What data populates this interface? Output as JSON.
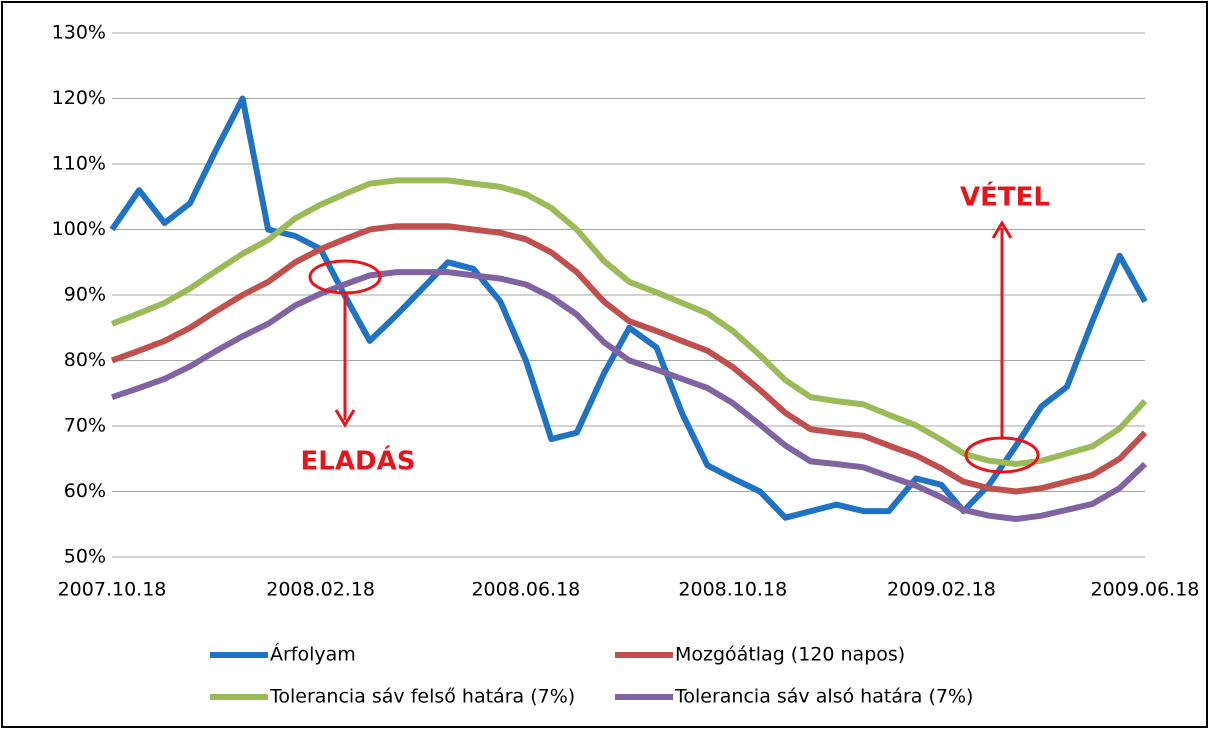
{
  "chart_data": {
    "type": "line",
    "x": [
      "2007.10.18",
      "2007.11.03",
      "2007.11.18",
      "2007.12.03",
      "2007.12.18",
      "2008.01.03",
      "2008.01.18",
      "2008.02.03",
      "2008.02.18",
      "2008.03.03",
      "2008.03.18",
      "2008.04.03",
      "2008.04.18",
      "2008.05.03",
      "2008.05.18",
      "2008.06.03",
      "2008.06.18",
      "2008.07.03",
      "2008.07.18",
      "2008.08.03",
      "2008.08.18",
      "2008.09.03",
      "2008.09.18",
      "2008.10.03",
      "2008.10.18",
      "2008.11.03",
      "2008.11.18",
      "2008.12.03",
      "2008.12.18",
      "2009.01.03",
      "2009.01.18",
      "2009.02.03",
      "2009.02.18",
      "2009.03.03",
      "2009.03.18",
      "2009.04.03",
      "2009.04.18",
      "2009.05.03",
      "2009.05.18",
      "2009.06.03",
      "2009.06.18"
    ],
    "series": [
      {
        "name": "Árfolyam",
        "color": "#1f73c2",
        "values": [
          100,
          106,
          101,
          104,
          112,
          120,
          100,
          99,
          97,
          90,
          83,
          87,
          91,
          95,
          94,
          89,
          80,
          68,
          69,
          78,
          85,
          82,
          72,
          64,
          62,
          60,
          56,
          57,
          58,
          57,
          57,
          62,
          61,
          57,
          61,
          67,
          73,
          76,
          86,
          96,
          89
        ]
      },
      {
        "name": "Mozgóátlag (120 napos)",
        "color": "#c0504d",
        "values": [
          80,
          81.5,
          83,
          85,
          87.5,
          90,
          92,
          95,
          97,
          98.5,
          100,
          100.5,
          100.5,
          100.5,
          100,
          99.5,
          98.5,
          96.5,
          93.5,
          89,
          86,
          84.5,
          83,
          81.5,
          79,
          75.5,
          72,
          69.5,
          69,
          68.5,
          67,
          65.5,
          63.5,
          61.5,
          60.5,
          60,
          60.5,
          61.5,
          62.5,
          65,
          69
        ]
      },
      {
        "name": "Tolerancia sáv felső határa (7%)",
        "color": "#9bbb59",
        "values": [
          85.6,
          87.2,
          88.8,
          91,
          93.6,
          96.3,
          98.4,
          101.7,
          103.8,
          105.4,
          107,
          107.5,
          107.5,
          107.5,
          107,
          106.5,
          105.4,
          103.3,
          100,
          95.2,
          92,
          90.4,
          88.8,
          87.2,
          84.5,
          80.8,
          77,
          74.4,
          73.8,
          73.3,
          71.7,
          70.1,
          67.9,
          65.8,
          64.7,
          64.2,
          64.7,
          65.8,
          66.9,
          69.6,
          73.8
        ]
      },
      {
        "name": "Tolerancia sáv alsó határa (7%)",
        "color": "#8064a2",
        "values": [
          74.4,
          75.8,
          77.2,
          79.1,
          81.4,
          83.7,
          85.6,
          88.4,
          90.2,
          91.6,
          93,
          93.5,
          93.5,
          93.5,
          93,
          92.5,
          91.6,
          89.7,
          87,
          82.8,
          80,
          78.6,
          77.2,
          75.8,
          73.5,
          70.2,
          67,
          64.6,
          64.2,
          63.7,
          62.3,
          60.9,
          59.1,
          57.2,
          56.3,
          55.8,
          56.3,
          57.2,
          58.1,
          60.5,
          64.2
        ]
      }
    ],
    "xlim": [
      "2007.10.18",
      "2009.06.18"
    ],
    "xticks": [
      "2007.10.18",
      "2008.02.18",
      "2008.06.18",
      "2008.10.18",
      "2009.02.18",
      "2009.06.18"
    ],
    "ylim": [
      50,
      130
    ],
    "yticks": [
      {
        "value": 50,
        "label": "50%"
      },
      {
        "value": 60,
        "label": "60%"
      },
      {
        "value": 70,
        "label": "70%"
      },
      {
        "value": 80,
        "label": "80%"
      },
      {
        "value": 90,
        "label": "90%"
      },
      {
        "value": 100,
        "label": "100%"
      },
      {
        "value": 110,
        "label": "110%"
      },
      {
        "value": 120,
        "label": "120%"
      },
      {
        "value": 130,
        "label": "130%"
      }
    ],
    "grid": true,
    "annotations": [
      "ELADÁS",
      "VÉTEL"
    ]
  }
}
